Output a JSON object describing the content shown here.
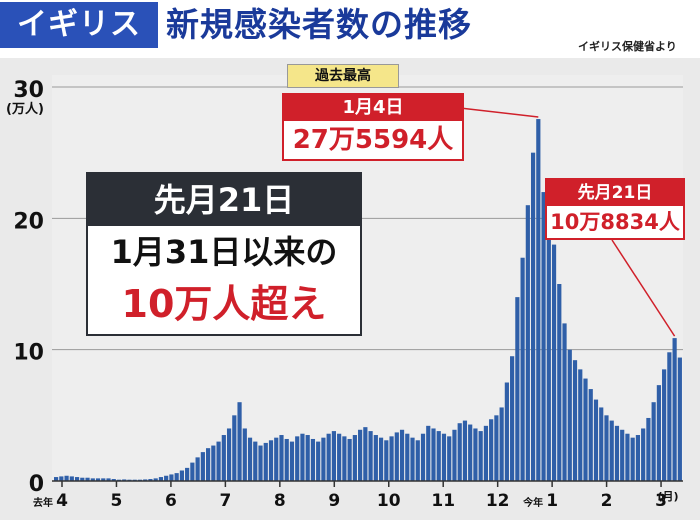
{
  "header": {
    "country": "イギリス",
    "title": "新規感染者数の推移",
    "source": "イギリス保健省より"
  },
  "chart_data": {
    "type": "bar",
    "title": "新規感染者数の推移",
    "ylabel": "(万人)",
    "xlabel": "(月)",
    "ylim": [
      0,
      30
    ],
    "y_ticks": [
      "0",
      "10",
      "20",
      "30"
    ],
    "x_tick_labels": [
      {
        "label": "4",
        "prefix": "去年"
      },
      {
        "label": "5"
      },
      {
        "label": "6"
      },
      {
        "label": "7"
      },
      {
        "label": "8"
      },
      {
        "label": "9"
      },
      {
        "label": "10"
      },
      {
        "label": "11"
      },
      {
        "label": "12"
      },
      {
        "label": "1",
        "prefix": "今年"
      },
      {
        "label": "2"
      },
      {
        "label": "3"
      }
    ],
    "x_unit": "(月)",
    "grid": true,
    "bar_color": "#2f5fa8",
    "series": [
      {
        "values": [
          0.3,
          0.35,
          0.4,
          0.35,
          0.3,
          0.25,
          0.25,
          0.2,
          0.2,
          0.2,
          0.2,
          0.15,
          0.1,
          0.12,
          0.1,
          0.1,
          0.1,
          0.12,
          0.15,
          0.2,
          0.3,
          0.4,
          0.5,
          0.6,
          0.8,
          1.0,
          1.4,
          1.8,
          2.2,
          2.5,
          2.7,
          3.0,
          3.5,
          4.0,
          5.0,
          6.0,
          4.0,
          3.3,
          3.0,
          2.7,
          2.9,
          3.1,
          3.3,
          3.5,
          3.2,
          3.0,
          3.4,
          3.6,
          3.5,
          3.2,
          3.0,
          3.3,
          3.6,
          3.8,
          3.6,
          3.4,
          3.2,
          3.5,
          3.9,
          4.1,
          3.8,
          3.5,
          3.3,
          3.1,
          3.4,
          3.7,
          3.9,
          3.6,
          3.3,
          3.1,
          3.6,
          4.2,
          4.0,
          3.8,
          3.6,
          3.4,
          3.9,
          4.4,
          4.6,
          4.3,
          4.0,
          3.8,
          4.2,
          4.7,
          5.0,
          5.6,
          7.5,
          9.5,
          14.0,
          17.0,
          21.0,
          25.0,
          27.56,
          22.0,
          20.0,
          18.0,
          15.0,
          12.0,
          10.0,
          9.2,
          8.5,
          7.8,
          7.0,
          6.2,
          5.6,
          5.0,
          4.6,
          4.2,
          3.9,
          3.6,
          3.3,
          3.5,
          4.0,
          4.8,
          6.0,
          7.3,
          8.5,
          9.8,
          10.88,
          9.4
        ]
      }
    ],
    "annotations": [
      {
        "tag": "過去最高",
        "date": "1月4日",
        "value_text": "27万5594人",
        "value": 27.5594
      },
      {
        "date": "先月21日",
        "value_text": "10万8834人",
        "value": 10.8834
      }
    ],
    "headline": {
      "head": "先月21日",
      "line1": "1月31日以来の",
      "line2": "10万人超え"
    }
  }
}
